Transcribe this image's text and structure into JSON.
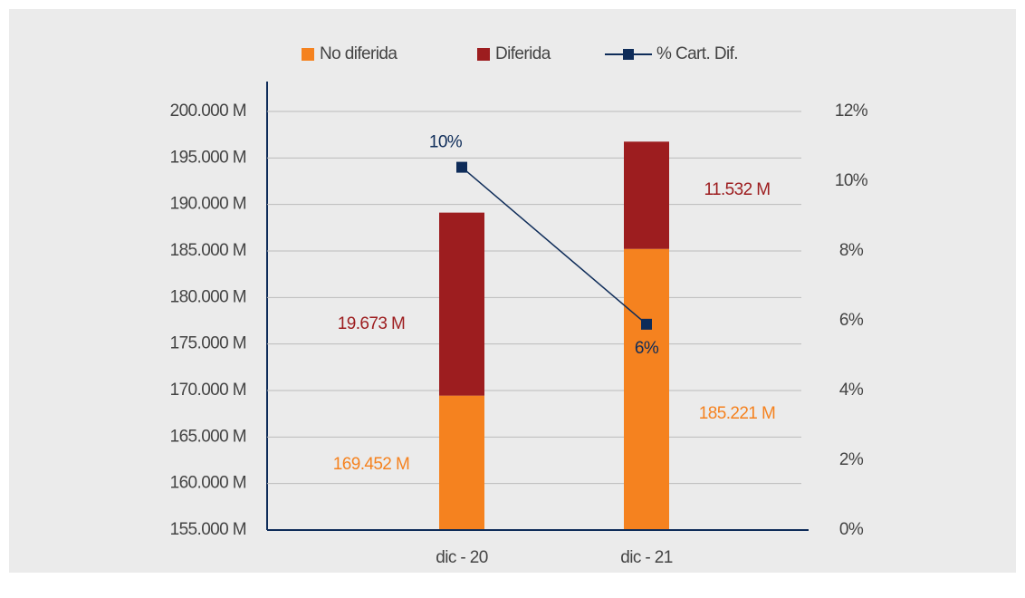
{
  "chart_data": {
    "type": "bar",
    "categories": [
      "dic - 20",
      "dic - 21"
    ],
    "series": [
      {
        "name": "No diferida",
        "color": "#f5821f",
        "values": [
          169452,
          185221
        ],
        "value_labels": [
          "169.452 M",
          "185.221 M"
        ]
      },
      {
        "name": "Diferida",
        "color": "#9d1d1f",
        "values": [
          19673,
          11532
        ],
        "value_labels": [
          "19.673 M",
          "11.532 M"
        ]
      },
      {
        "name": "% Cart. Dif.",
        "type": "line",
        "axis": "y2",
        "color": "#0e2c59",
        "values": [
          10.4,
          5.9
        ],
        "value_labels": [
          "10%",
          "6%"
        ]
      }
    ],
    "stacked": true,
    "ylim": [
      155000,
      200000
    ],
    "yticks": [
      {
        "value": 155000,
        "label": "155.000 M"
      },
      {
        "value": 160000,
        "label": "160.000 M"
      },
      {
        "value": 165000,
        "label": "165.000 M"
      },
      {
        "value": 170000,
        "label": "170.000 M"
      },
      {
        "value": 175000,
        "label": "175.000 M"
      },
      {
        "value": 180000,
        "label": "180.000 M"
      },
      {
        "value": 185000,
        "label": "185.000 M"
      },
      {
        "value": 190000,
        "label": "190.000 M"
      },
      {
        "value": 195000,
        "label": "195.000 M"
      },
      {
        "value": 200000,
        "label": "200.000 M"
      }
    ],
    "y2lim": [
      0,
      12
    ],
    "y2ticks": [
      {
        "value": 0,
        "label": "0%"
      },
      {
        "value": 2,
        "label": "2%"
      },
      {
        "value": 4,
        "label": "4%"
      },
      {
        "value": 6,
        "label": "6%"
      },
      {
        "value": 8,
        "label": "8%"
      },
      {
        "value": 10,
        "label": "10%"
      },
      {
        "value": 12,
        "label": "12%"
      }
    ],
    "grid": true,
    "legend": "top"
  }
}
